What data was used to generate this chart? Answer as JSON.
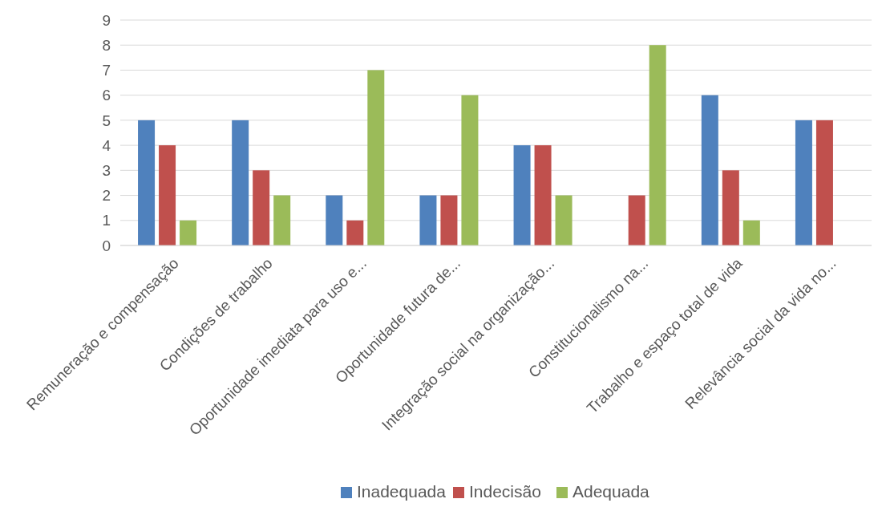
{
  "chart_data": {
    "type": "bar",
    "categories": [
      "Remuneração e compensação",
      "Condições de trabalho",
      "Oportunidade imediata para uso e...",
      "Oportunidade futura de...",
      "Integração social na organização...",
      "Constitucionalismo na...",
      "Trabalho e espaço total de vida",
      "Relevância social da vida no..."
    ],
    "series": [
      {
        "name": "Inadequada",
        "color": "#4f81bd",
        "values": [
          5,
          5,
          2,
          2,
          4,
          0,
          6,
          5
        ]
      },
      {
        "name": "Indecisão",
        "color": "#c0504d",
        "values": [
          4,
          3,
          1,
          2,
          4,
          2,
          3,
          5
        ]
      },
      {
        "name": "Adequada",
        "color": "#9bbb59",
        "values": [
          1,
          2,
          7,
          6,
          2,
          8,
          1,
          0
        ]
      }
    ],
    "ylim": [
      0,
      9
    ],
    "yticks": [
      0,
      1,
      2,
      3,
      4,
      5,
      6,
      7,
      8,
      9
    ],
    "grid": "y",
    "legend": "bottom"
  }
}
